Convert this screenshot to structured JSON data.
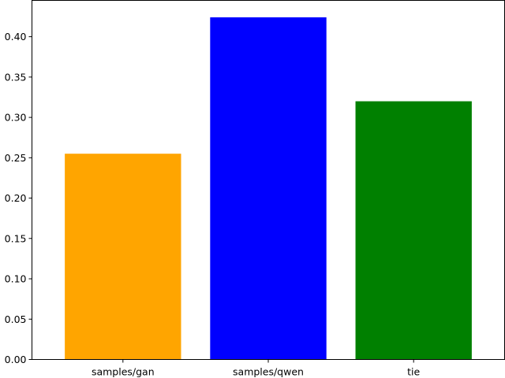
{
  "chart_data": {
    "type": "bar",
    "title": "",
    "xlabel": "",
    "ylabel": "",
    "categories": [
      "samples/gan",
      "samples/qwen",
      "tie"
    ],
    "values": [
      0.255,
      0.424,
      0.32
    ],
    "colors": [
      "#ffa500",
      "#0000ff",
      "#008000"
    ],
    "ylim": [
      0,
      0.445
    ],
    "yticks": [
      0.0,
      0.05,
      0.1,
      0.15,
      0.2,
      0.25,
      0.3,
      0.35,
      0.4
    ],
    "ytick_labels": [
      "0.00",
      "0.05",
      "0.10",
      "0.15",
      "0.20",
      "0.25",
      "0.30",
      "0.35",
      "0.40"
    ],
    "grid": false,
    "legend": "none"
  }
}
